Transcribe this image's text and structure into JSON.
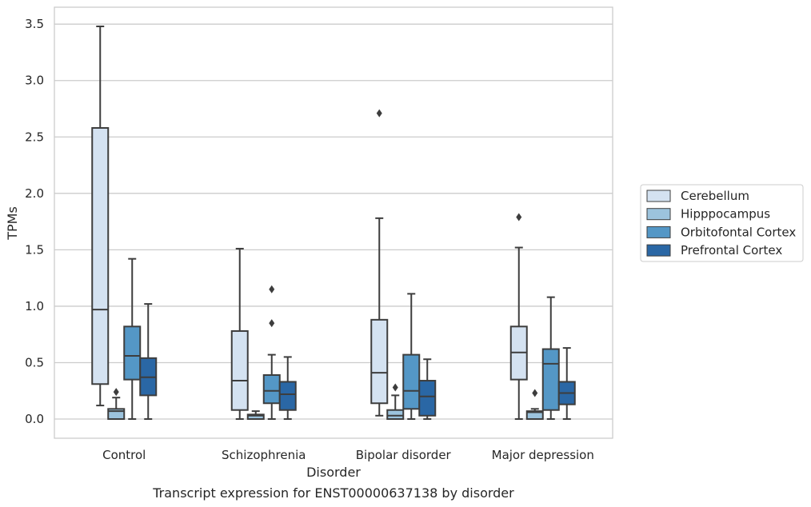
{
  "chart_data": {
    "type": "box",
    "caption": "Transcript expression for ENST00000637138 by disorder",
    "xlabel": "Disorder",
    "ylabel": "TPMs",
    "ylim": [
      -0.17,
      3.65
    ],
    "yticks": [
      0.0,
      0.5,
      1.0,
      1.5,
      2.0,
      2.5,
      3.0,
      3.5
    ],
    "ytick_labels": [
      "0.0",
      "0.5",
      "1.0",
      "1.5",
      "2.0",
      "2.5",
      "3.0",
      "3.5"
    ],
    "grid": "horizontal",
    "legend_position": "right",
    "categories": [
      "Control",
      "Schizophrenia",
      "Bipolar disorder",
      "Major depression"
    ],
    "series": [
      {
        "name": "Cerebellum",
        "color": "#d4e2f1",
        "boxes": [
          {
            "whislo": 0.12,
            "q1": 0.31,
            "med": 0.97,
            "q3": 2.58,
            "whishi": 3.48,
            "fliers": []
          },
          {
            "whislo": 0.0,
            "q1": 0.08,
            "med": 0.34,
            "q3": 0.78,
            "whishi": 1.51,
            "fliers": []
          },
          {
            "whislo": 0.03,
            "q1": 0.14,
            "med": 0.41,
            "q3": 0.88,
            "whishi": 1.78,
            "fliers": [
              2.71
            ]
          },
          {
            "whislo": 0.0,
            "q1": 0.35,
            "med": 0.59,
            "q3": 0.82,
            "whishi": 1.52,
            "fliers": [
              1.79
            ]
          }
        ]
      },
      {
        "name": "Hipppocampus",
        "color": "#9cc3dd",
        "boxes": [
          {
            "whislo": 0.0,
            "q1": 0.0,
            "med": 0.07,
            "q3": 0.09,
            "whishi": 0.19,
            "fliers": [
              0.24
            ]
          },
          {
            "whislo": 0.0,
            "q1": 0.0,
            "med": 0.03,
            "q3": 0.04,
            "whishi": 0.07,
            "fliers": []
          },
          {
            "whislo": 0.0,
            "q1": 0.0,
            "med": 0.03,
            "q3": 0.08,
            "whishi": 0.21,
            "fliers": [
              0.28
            ]
          },
          {
            "whislo": 0.0,
            "q1": 0.0,
            "med": 0.06,
            "q3": 0.07,
            "whishi": 0.09,
            "fliers": [
              0.23
            ]
          }
        ]
      },
      {
        "name": "Orbitofontal Cortex",
        "color": "#5497c6",
        "boxes": [
          {
            "whislo": 0.0,
            "q1": 0.35,
            "med": 0.56,
            "q3": 0.82,
            "whishi": 1.42,
            "fliers": []
          },
          {
            "whislo": 0.0,
            "q1": 0.14,
            "med": 0.25,
            "q3": 0.39,
            "whishi": 0.57,
            "fliers": [
              0.85,
              1.15
            ]
          },
          {
            "whislo": 0.0,
            "q1": 0.09,
            "med": 0.25,
            "q3": 0.57,
            "whishi": 1.11,
            "fliers": []
          },
          {
            "whislo": 0.0,
            "q1": 0.08,
            "med": 0.49,
            "q3": 0.62,
            "whishi": 1.08,
            "fliers": []
          }
        ]
      },
      {
        "name": "Prefrontal Cortex",
        "color": "#2a67a5",
        "boxes": [
          {
            "whislo": 0.0,
            "q1": 0.21,
            "med": 0.37,
            "q3": 0.54,
            "whishi": 1.02,
            "fliers": []
          },
          {
            "whislo": 0.0,
            "q1": 0.08,
            "med": 0.22,
            "q3": 0.33,
            "whishi": 0.55,
            "fliers": []
          },
          {
            "whislo": 0.0,
            "q1": 0.03,
            "med": 0.2,
            "q3": 0.34,
            "whishi": 0.53,
            "fliers": []
          },
          {
            "whislo": 0.0,
            "q1": 0.13,
            "med": 0.23,
            "q3": 0.33,
            "whishi": 0.63,
            "fliers": []
          }
        ]
      }
    ]
  }
}
